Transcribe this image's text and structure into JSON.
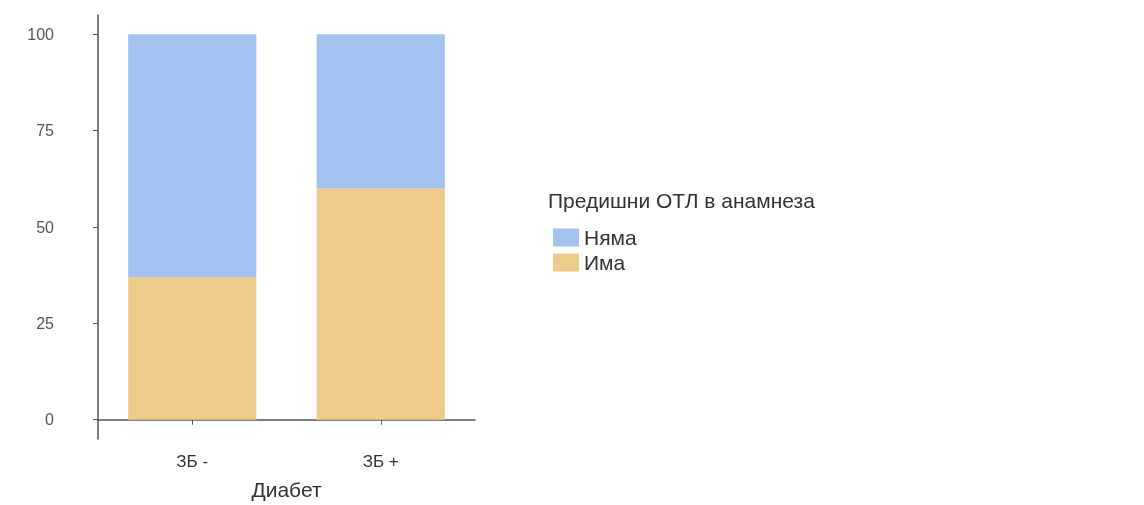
{
  "chart_data": {
    "type": "bar",
    "stacked": true,
    "xlabel": "Диабет",
    "legend_title": "Предишни ОТЛ в анамнеза",
    "categories": [
      "ЗБ -",
      "ЗБ +"
    ],
    "series": [
      {
        "name": "Има",
        "color": "#eecb8b",
        "values": [
          37,
          60
        ]
      },
      {
        "name": "Няма",
        "color": "#a4c2f0",
        "values": [
          63,
          40
        ]
      }
    ],
    "ylim": [
      -5,
      105
    ],
    "yticks": [
      0,
      25,
      50,
      75,
      100
    ],
    "grid": false,
    "legend": "right"
  }
}
